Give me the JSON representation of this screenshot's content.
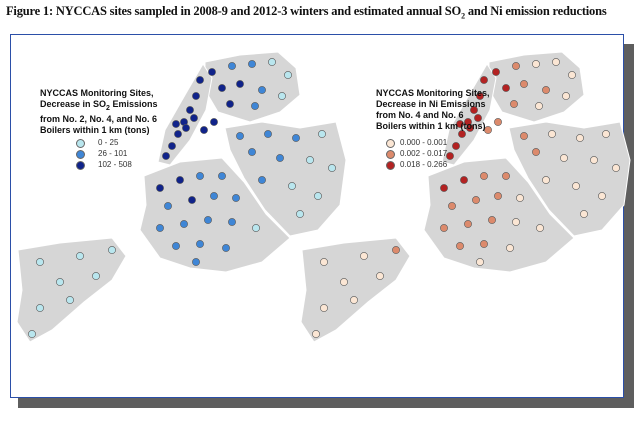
{
  "figure": {
    "title_prefix": "Figure 1: NYCCAS sites sampled in 2008-9 and 2012-3 winters and estimated annual SO",
    "title_sub": "2",
    "title_suffix": " and Ni emission reductions"
  },
  "left_map": {
    "legend_line1": "NYCCAS Monitoring Sites,",
    "legend_line2_prefix": "Decrease in SO",
    "legend_line2_sub": "2",
    "legend_line2_suffix": " Emissions",
    "legend_line3": "from No. 2, No. 4, and No. 6",
    "legend_line4": "Boilers within 1 km (tons)",
    "classes": [
      {
        "label": "0 - 25",
        "color": "#b9e6ee"
      },
      {
        "label": "26 - 101",
        "color": "#3f86d6"
      },
      {
        "label": "102 - 508",
        "color": "#10238a"
      }
    ]
  },
  "right_map": {
    "legend_line1": "NYCCAS Monitoring Sites,",
    "legend_line2": "Decrease in Ni Emissions",
    "legend_line3": "from No. 4 and No. 6",
    "legend_line4": "Boilers within 1 km (tons)",
    "classes": [
      {
        "label": "0.000 - 0.001",
        "color": "#fbe6d4"
      },
      {
        "label": "0.002 - 0.017",
        "color": "#dc8a6c"
      },
      {
        "label": "0.018 - 0.266",
        "color": "#b32222"
      }
    ]
  },
  "colors": {
    "land": "#d6d6d6",
    "frame_border": "#2b4fa8",
    "shadow": "#5e5e5e"
  }
}
